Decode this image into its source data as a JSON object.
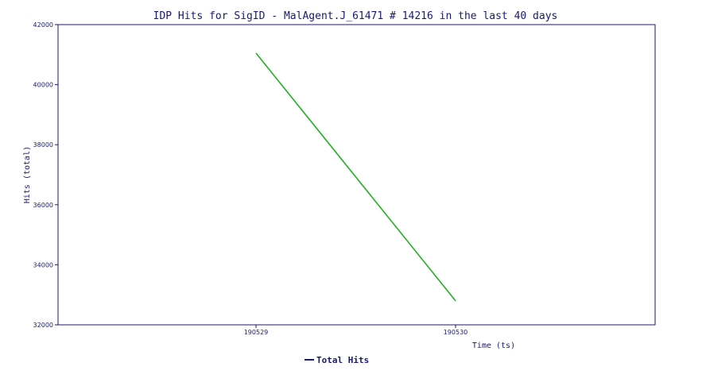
{
  "chart_data": {
    "type": "line",
    "title": "IDP Hits for SigID - MalAgent.J_61471 # 14216 in the last 40 days",
    "xlabel": "Time (ts)",
    "ylabel": "Hits (total)",
    "x": [
      "190529",
      "190530"
    ],
    "ylim": [
      32000,
      42000
    ],
    "yticks": [
      32000,
      34000,
      36000,
      38000,
      40000,
      42000
    ],
    "series": [
      {
        "name": "Total Hits",
        "values": [
          41050,
          32800
        ]
      }
    ],
    "legend_position": "bottom-center",
    "grid": false,
    "colors": {
      "frame": "#1a1a6e",
      "line": "#22b022",
      "legend_swatch": "#1a1a6e",
      "text": "#1a1a6e"
    }
  }
}
